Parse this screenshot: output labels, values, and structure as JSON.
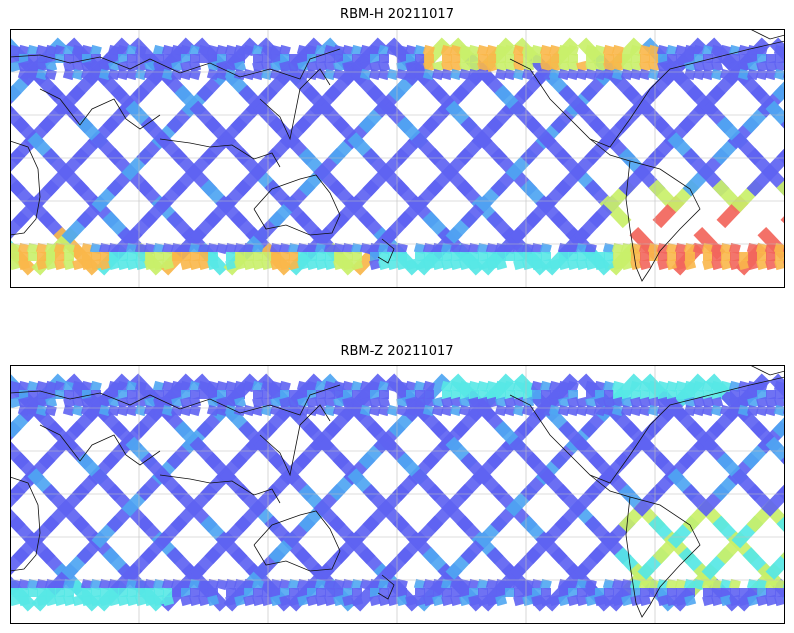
{
  "panels": [
    {
      "title": "RBM-H 20211017",
      "scheme": "H"
    },
    {
      "title": "RBM-Z 20211017",
      "scheme": "Z"
    }
  ],
  "colors": {
    "low": "#5f63f2",
    "mid_low": "#4fa6f2",
    "mid": "#56e8e6",
    "mid_high": "#c9f06a",
    "high": "#f9b74a",
    "peak": "#f2665c",
    "coast": "#111111",
    "grid": "#bdbdbd"
  }
}
